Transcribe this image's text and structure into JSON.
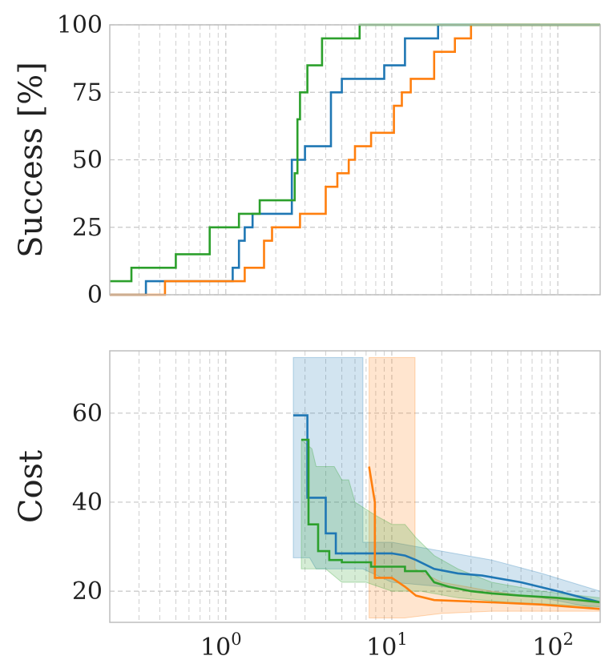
{
  "chart_data": [
    {
      "type": "line",
      "ylabel": "Success [%]",
      "xscale": "log",
      "xlim": [
        0.2,
        180
      ],
      "ylim": [
        0,
        100
      ],
      "yticks": [
        "0",
        "25",
        "50",
        "75",
        "100"
      ],
      "grid": true,
      "series": [
        {
          "color": "#1f77b4",
          "points": [
            [
              0.2,
              0
            ],
            [
              0.33,
              0
            ],
            [
              0.33,
              5
            ],
            [
              1.1,
              5
            ],
            [
              1.1,
              10
            ],
            [
              1.2,
              10
            ],
            [
              1.2,
              20
            ],
            [
              1.3,
              20
            ],
            [
              1.3,
              25
            ],
            [
              1.45,
              25
            ],
            [
              1.45,
              30
            ],
            [
              2.5,
              30
            ],
            [
              2.5,
              50
            ],
            [
              3.0,
              50
            ],
            [
              3.0,
              55
            ],
            [
              4.3,
              55
            ],
            [
              4.3,
              75
            ],
            [
              5.0,
              75
            ],
            [
              5.0,
              80
            ],
            [
              9.0,
              80
            ],
            [
              9.0,
              85
            ],
            [
              12,
              85
            ],
            [
              12,
              95
            ],
            [
              19,
              95
            ],
            [
              19,
              100
            ],
            [
              180,
              100
            ]
          ]
        },
        {
          "color": "#ff7f0e",
          "points": [
            [
              0.2,
              0
            ],
            [
              0.43,
              0
            ],
            [
              0.43,
              5
            ],
            [
              1.3,
              5
            ],
            [
              1.3,
              10
            ],
            [
              1.7,
              10
            ],
            [
              1.7,
              20
            ],
            [
              1.9,
              20
            ],
            [
              1.9,
              25
            ],
            [
              2.8,
              25
            ],
            [
              2.8,
              30
            ],
            [
              4.0,
              30
            ],
            [
              4.0,
              40
            ],
            [
              4.7,
              40
            ],
            [
              4.7,
              45
            ],
            [
              5.5,
              45
            ],
            [
              5.5,
              50
            ],
            [
              6.0,
              50
            ],
            [
              6.0,
              55
            ],
            [
              7.5,
              55
            ],
            [
              7.5,
              60
            ],
            [
              10.3,
              60
            ],
            [
              10.3,
              70
            ],
            [
              11.5,
              70
            ],
            [
              11.5,
              75
            ],
            [
              13,
              75
            ],
            [
              13,
              80
            ],
            [
              18,
              80
            ],
            [
              18,
              90
            ],
            [
              24,
              90
            ],
            [
              24,
              95
            ],
            [
              30,
              95
            ],
            [
              30,
              100
            ],
            [
              180,
              100
            ]
          ]
        },
        {
          "color": "#2ca02c",
          "points": [
            [
              0.2,
              5
            ],
            [
              0.27,
              5
            ],
            [
              0.27,
              10
            ],
            [
              0.5,
              10
            ],
            [
              0.5,
              15
            ],
            [
              0.8,
              15
            ],
            [
              0.8,
              25
            ],
            [
              1.2,
              25
            ],
            [
              1.2,
              30
            ],
            [
              1.6,
              30
            ],
            [
              1.6,
              35
            ],
            [
              2.6,
              35
            ],
            [
              2.6,
              45
            ],
            [
              2.7,
              45
            ],
            [
              2.7,
              65
            ],
            [
              2.8,
              65
            ],
            [
              2.8,
              75
            ],
            [
              3.1,
              75
            ],
            [
              3.1,
              85
            ],
            [
              3.8,
              85
            ],
            [
              3.8,
              95
            ],
            [
              6.4,
              95
            ],
            [
              6.4,
              100
            ],
            [
              180,
              100
            ]
          ]
        }
      ]
    },
    {
      "type": "line",
      "ylabel": "Cost",
      "xscale": "log",
      "xlim": [
        0.2,
        180
      ],
      "ylim": [
        13,
        74
      ],
      "yticks": [
        "20",
        "40",
        "60"
      ],
      "xticks": [
        {
          "value": 1,
          "base": "10",
          "exp": "0"
        },
        {
          "value": 10,
          "base": "10",
          "exp": "1"
        },
        {
          "value": 100,
          "base": "10",
          "exp": "2"
        }
      ],
      "grid": true,
      "series": [
        {
          "color": "#1f77b4",
          "line": [
            [
              2.55,
              59.5
            ],
            [
              3.1,
              59.5
            ],
            [
              3.1,
              41
            ],
            [
              4.0,
              41
            ],
            [
              4.0,
              33
            ],
            [
              4.6,
              33
            ],
            [
              4.6,
              28.5
            ],
            [
              10,
              28.5
            ],
            [
              12,
              28
            ],
            [
              14,
              27
            ],
            [
              18,
              25
            ],
            [
              25,
              24
            ],
            [
              35,
              23.5
            ],
            [
              60,
              22
            ],
            [
              100,
              20
            ],
            [
              180,
              17.5
            ]
          ],
          "band": {
            "upper": [
              [
                2.55,
                72.5
              ],
              [
                6.7,
                72.5
              ],
              [
                6.7,
                31
              ],
              [
                10,
                31
              ],
              [
                20,
                29
              ],
              [
                40,
                27
              ],
              [
                80,
                24
              ],
              [
                120,
                22
              ],
              [
                180,
                20
              ]
            ],
            "lower": [
              [
                2.55,
                27.5
              ],
              [
                3.2,
                27.5
              ],
              [
                3.5,
                25
              ],
              [
                6.7,
                25
              ],
              [
                10,
                22
              ],
              [
                20,
                21
              ],
              [
                40,
                19.5
              ],
              [
                80,
                18.5
              ],
              [
                180,
                16
              ]
            ]
          }
        },
        {
          "color": "#ff7f0e",
          "line": [
            [
              7.3,
              48
            ],
            [
              7.9,
              40
            ],
            [
              7.9,
              23
            ],
            [
              10,
              23
            ],
            [
              12,
              21
            ],
            [
              14,
              19
            ],
            [
              18,
              18
            ],
            [
              40,
              17.5
            ],
            [
              80,
              17
            ],
            [
              180,
              16
            ]
          ],
          "band": {
            "upper": [
              [
                7.3,
                72.5
              ],
              [
                13.8,
                72.5
              ],
              [
                13.8,
                25
              ],
              [
                20,
                22
              ],
              [
                40,
                20
              ],
              [
                80,
                18.5
              ],
              [
                180,
                17.5
              ]
            ],
            "lower": [
              [
                7.3,
                14
              ],
              [
                12,
                14
              ],
              [
                20,
                15
              ],
              [
                40,
                15.5
              ],
              [
                80,
                15.5
              ],
              [
                180,
                15.5
              ]
            ]
          }
        },
        {
          "color": "#2ca02c",
          "line": [
            [
              2.85,
              54
            ],
            [
              3.15,
              54
            ],
            [
              3.15,
              35
            ],
            [
              3.6,
              35
            ],
            [
              3.6,
              29
            ],
            [
              4.2,
              29
            ],
            [
              4.2,
              27
            ],
            [
              5.0,
              27
            ],
            [
              5.0,
              26.5
            ],
            [
              7.5,
              26.5
            ],
            [
              7.5,
              25.5
            ],
            [
              12,
              25.5
            ],
            [
              12,
              24.5
            ],
            [
              16,
              24.5
            ],
            [
              18,
              22
            ],
            [
              22,
              21
            ],
            [
              30,
              20
            ],
            [
              40,
              19.5
            ],
            [
              60,
              19
            ],
            [
              100,
              18.5
            ],
            [
              180,
              17.5
            ]
          ],
          "band": {
            "upper": [
              [
                2.85,
                54
              ],
              [
                3.3,
                52
              ],
              [
                3.5,
                48
              ],
              [
                4.5,
                48
              ],
              [
                5,
                45
              ],
              [
                5.5,
                45
              ],
              [
                6.0,
                40
              ],
              [
                8,
                37
              ],
              [
                10,
                35
              ],
              [
                12,
                35
              ],
              [
                14,
                32
              ],
              [
                18,
                28
              ],
              [
                25,
                25
              ],
              [
                40,
                22
              ],
              [
                80,
                20
              ],
              [
                180,
                18.5
              ]
            ],
            "lower": [
              [
                2.85,
                25
              ],
              [
                4,
                25
              ],
              [
                5,
                22
              ],
              [
                7,
                22
              ],
              [
                10,
                20
              ],
              [
                15,
                20
              ],
              [
                25,
                18.5
              ],
              [
                50,
                17.5
              ],
              [
                100,
                17
              ],
              [
                180,
                16.5
              ]
            ]
          }
        }
      ]
    }
  ]
}
